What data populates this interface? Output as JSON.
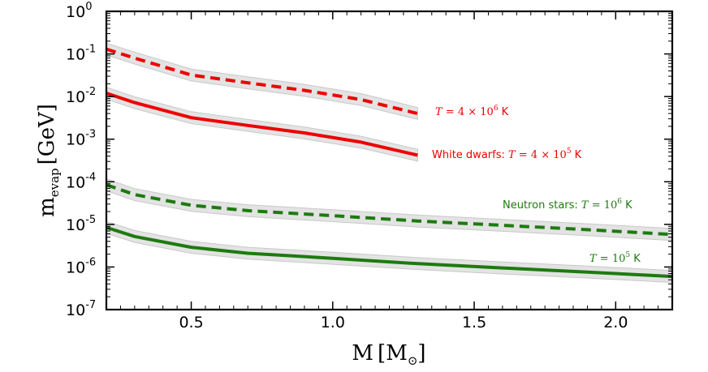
{
  "chart_data": {
    "type": "line",
    "xlabel": "M",
    "xlabel_unit": "M",
    "xlabel_unit_sub": "⊙",
    "ylabel": "m",
    "ylabel_sub": "evap",
    "ylabel_unit": "GeV",
    "xlim": [
      0.2,
      2.2
    ],
    "ylim_log10": [
      -7,
      0
    ],
    "x_ticks": [
      {
        "value": 0.5,
        "label": "0.5"
      },
      {
        "value": 1.0,
        "label": "1.0"
      },
      {
        "value": 1.5,
        "label": "1.5"
      },
      {
        "value": 2.0,
        "label": "2.0"
      }
    ],
    "y_ticks": [
      {
        "exp": 0,
        "base": "10",
        "sup": "0"
      },
      {
        "exp": -1,
        "base": "10",
        "sup": "-1"
      },
      {
        "exp": -2,
        "base": "10",
        "sup": "-2"
      },
      {
        "exp": -3,
        "base": "10",
        "sup": "-3"
      },
      {
        "exp": -4,
        "base": "10",
        "sup": "-4"
      },
      {
        "exp": -5,
        "base": "10",
        "sup": "-5"
      },
      {
        "exp": -6,
        "base": "10",
        "sup": "-6"
      },
      {
        "exp": -7,
        "base": "10",
        "sup": "-7"
      }
    ],
    "band_halfwidth_dex": 0.14,
    "series": [
      {
        "name": "wd-4e6",
        "color": "#ee0000",
        "dashed": true,
        "x": [
          0.2,
          0.3,
          0.5,
          0.7,
          0.9,
          1.1,
          1.3
        ],
        "y": [
          0.13,
          0.08,
          0.032,
          0.021,
          0.014,
          0.0085,
          0.004
        ]
      },
      {
        "name": "wd-4e5",
        "color": "#ee0000",
        "dashed": false,
        "x": [
          0.2,
          0.3,
          0.5,
          0.7,
          0.9,
          1.1,
          1.3
        ],
        "y": [
          0.012,
          0.0072,
          0.0032,
          0.0021,
          0.0014,
          0.00085,
          0.00042
        ]
      },
      {
        "name": "ns-1e6",
        "color": "#1e7a10",
        "dashed": true,
        "x": [
          0.2,
          0.3,
          0.5,
          0.7,
          1.0,
          1.3,
          1.6,
          1.9,
          2.2
        ],
        "y": [
          8.5e-05,
          5e-05,
          2.8e-05,
          2.1e-05,
          1.6e-05,
          1.2e-05,
          9.5e-06,
          7.5e-06,
          5.8e-06
        ]
      },
      {
        "name": "ns-1e5",
        "color": "#1e7a10",
        "dashed": false,
        "x": [
          0.2,
          0.3,
          0.5,
          0.7,
          1.0,
          1.3,
          1.6,
          1.9,
          2.2
        ],
        "y": [
          8.5e-06,
          5.2e-06,
          2.9e-06,
          2.1e-06,
          1.6e-06,
          1.2e-06,
          9.5e-07,
          7.6e-07,
          6e-07
        ]
      }
    ],
    "annotations": {
      "wd_hot": {
        "prefix": "",
        "math": "T",
        "eq": " = 4 × 10",
        "sup": "6",
        "unit": " K",
        "color": "#ee0000"
      },
      "wd_cool": {
        "prefix": "White dwarfs: ",
        "math": "T",
        "eq": " = 4 × 10",
        "sup": "5",
        "unit": " K",
        "color": "#ee0000"
      },
      "ns_hot": {
        "prefix": "Neutron stars: ",
        "math": "T",
        "eq": " = 10",
        "sup": "6",
        "unit": " K",
        "color": "#1e7a10"
      },
      "ns_cool": {
        "prefix": "",
        "math": "T",
        "eq": " = 10",
        "sup": "5",
        "unit": " K",
        "color": "#1e7a10"
      }
    }
  }
}
